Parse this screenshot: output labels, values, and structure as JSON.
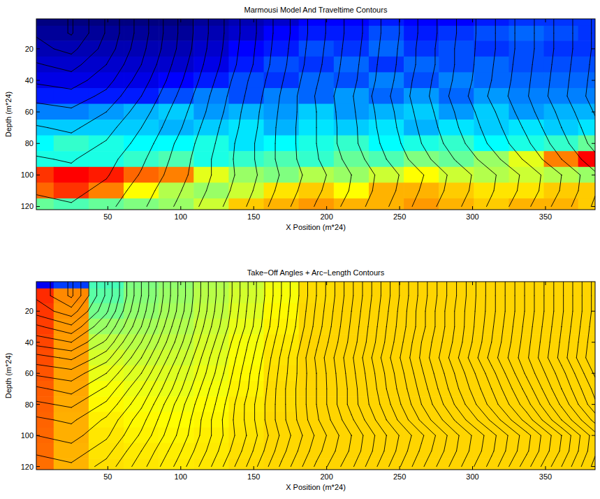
{
  "chart_data": [
    {
      "type": "heatmap",
      "title": "Marmousi Model And Traveltime Contours",
      "x_label": "X Position (m*24)",
      "y_label": "Depth (m*24)",
      "xlim": [
        1,
        384
      ],
      "ylim": [
        1,
        122
      ],
      "xticks": [
        50,
        100,
        150,
        200,
        250,
        300,
        350
      ],
      "yticks": [
        20,
        40,
        60,
        80,
        100,
        120
      ],
      "x": [
        1,
        25,
        49,
        73,
        97,
        121,
        145,
        169,
        193,
        217,
        241,
        265,
        289,
        313,
        337,
        361,
        384
      ],
      "y": [
        1,
        10,
        20,
        30,
        40,
        50,
        60,
        70,
        80,
        90,
        100,
        110,
        120
      ],
      "color_range": [
        1500,
        5500
      ],
      "cells": [
        [
          1500,
          1500,
          1500,
          1500,
          1500,
          1600,
          1700,
          1800,
          2000,
          2000,
          2100,
          2000,
          2000,
          2100,
          2200,
          2200,
          2200
        ],
        [
          1600,
          1600,
          1600,
          1600,
          1600,
          1700,
          1800,
          2000,
          2100,
          2100,
          2300,
          2100,
          2200,
          2300,
          2400,
          2300,
          2200
        ],
        [
          1700,
          1700,
          1700,
          1700,
          1700,
          1800,
          2000,
          2100,
          2300,
          2200,
          2400,
          2200,
          2300,
          2200,
          2300,
          2200,
          2200
        ],
        [
          1800,
          1800,
          1800,
          1800,
          1800,
          1900,
          2100,
          2300,
          2200,
          2400,
          2200,
          2400,
          2300,
          2400,
          2300,
          2300,
          2300
        ],
        [
          1900,
          1900,
          1900,
          1900,
          2000,
          2100,
          2300,
          2200,
          2400,
          2300,
          2500,
          2300,
          2500,
          2400,
          2400,
          2400,
          2400
        ],
        [
          2100,
          2100,
          2100,
          2100,
          2300,
          2500,
          2300,
          2500,
          2400,
          2600,
          2400,
          2600,
          2400,
          2600,
          2500,
          2500,
          2500
        ],
        [
          2500,
          2500,
          2600,
          2700,
          2800,
          2600,
          2700,
          2600,
          2800,
          2600,
          2700,
          2800,
          2600,
          2800,
          2600,
          2700,
          2700
        ],
        [
          2800,
          2800,
          2800,
          2800,
          2700,
          2800,
          2900,
          2700,
          2900,
          2800,
          2900,
          2700,
          2900,
          2800,
          2900,
          2800,
          2900
        ],
        [
          3000,
          3200,
          3100,
          3000,
          3000,
          3100,
          2900,
          3000,
          3100,
          3200,
          3000,
          3100,
          3200,
          3000,
          3100,
          3200,
          3400
        ],
        [
          3100,
          3100,
          3100,
          3200,
          3300,
          3100,
          3200,
          3300,
          3200,
          3400,
          3300,
          3500,
          3400,
          3600,
          3900,
          4500,
          5000
        ],
        [
          4800,
          5000,
          4900,
          4600,
          4500,
          3900,
          3600,
          3500,
          3700,
          3600,
          3800,
          4000,
          3800,
          3700,
          3800,
          3700,
          3600
        ],
        [
          4600,
          4800,
          4500,
          4000,
          3700,
          3600,
          3800,
          4100,
          4200,
          4000,
          4300,
          4300,
          4200,
          4100,
          4100,
          4200,
          4200
        ],
        [
          3400,
          3300,
          3400,
          3500,
          3600,
          3800,
          4200,
          4300,
          4400,
          4300,
          4300,
          4400,
          4300,
          4200,
          4300,
          4300,
          4200
        ]
      ],
      "contour_field": [
        [
          1.9,
          0.9,
          3.1,
          5.5,
          7.9,
          10.2,
          12.4,
          14.5,
          16.5,
          18.4,
          20.3,
          22.2,
          24.0,
          25.8,
          27.6,
          29.4,
          31.2
        ],
        [
          1.9,
          0.9,
          3.1,
          5.5,
          7.9,
          10.2,
          12.4,
          14.5,
          16.5,
          18.4,
          20.3,
          22.2,
          24.0,
          25.8,
          27.6,
          29.4,
          31.2
        ],
        [
          2.3,
          1.7,
          3.4,
          5.7,
          8.0,
          10.3,
          12.5,
          14.6,
          16.6,
          18.5,
          20.4,
          22.3,
          24.1,
          25.8,
          27.6,
          29.4,
          31.2
        ],
        [
          3.1,
          2.6,
          4.0,
          6.0,
          8.3,
          10.5,
          12.6,
          14.7,
          16.7,
          18.6,
          20.5,
          22.3,
          24.1,
          25.9,
          27.7,
          29.5,
          31.3
        ],
        [
          3.8,
          3.5,
          4.6,
          6.5,
          8.6,
          10.8,
          12.9,
          14.9,
          16.9,
          18.7,
          20.6,
          22.5,
          24.2,
          26.0,
          27.8,
          29.6,
          31.4
        ],
        [
          4.7,
          4.4,
          5.3,
          7.0,
          9.0,
          11.1,
          13.1,
          15.1,
          17.1,
          18.9,
          20.8,
          22.6,
          24.4,
          26.2,
          27.9,
          29.7,
          31.5
        ],
        [
          5.4,
          5.2,
          6.0,
          7.5,
          9.4,
          11.3,
          13.3,
          15.2,
          17.0,
          18.8,
          20.6,
          22.4,
          24.1,
          25.8,
          27.6,
          29.3,
          31.1
        ],
        [
          6.1,
          5.8,
          6.6,
          8.0,
          9.7,
          11.6,
          13.4,
          15.3,
          17.0,
          18.7,
          20.5,
          22.2,
          23.9,
          25.5,
          27.2,
          29.0,
          30.7
        ],
        [
          6.6,
          6.4,
          7.1,
          8.4,
          10.1,
          11.8,
          13.6,
          15.3,
          17.0,
          18.7,
          20.3,
          22.0,
          23.6,
          25.2,
          26.8,
          28.6,
          30.4
        ],
        [
          7.1,
          6.9,
          7.6,
          8.8,
          10.3,
          12.0,
          13.6,
          15.3,
          16.9,
          18.4,
          20.0,
          21.6,
          23.1,
          24.6,
          26.2,
          28.0,
          29.7
        ],
        [
          7.5,
          7.3,
          7.9,
          9.1,
          10.5,
          12.0,
          13.5,
          15.1,
          16.6,
          18.0,
          19.5,
          20.9,
          22.4,
          23.8,
          25.3,
          27.0,
          28.8
        ],
        [
          7.9,
          7.7,
          8.3,
          9.5,
          10.8,
          12.2,
          13.7,
          15.3,
          16.8,
          18.1,
          19.6,
          21.1,
          22.5,
          23.9,
          25.4,
          27.1,
          28.9
        ],
        [
          8.3,
          8.1,
          8.7,
          9.8,
          11.1,
          12.5,
          14.0,
          15.6,
          17.1,
          18.4,
          19.9,
          21.4,
          22.8,
          24.2,
          25.8,
          27.5,
          29.2
        ]
      ],
      "contour_levels": [
        1,
        2,
        3,
        4,
        5,
        6,
        7,
        8,
        9,
        10,
        11,
        12,
        13,
        14,
        15,
        16,
        17,
        18,
        19,
        20,
        21,
        22,
        23,
        24,
        25,
        26,
        27,
        28,
        29,
        30,
        31
      ]
    },
    {
      "type": "heatmap",
      "title": "Take−Off Angles + Arc−Length Contours",
      "x_label": "X Position (m*24)",
      "y_label": "Depth (m*24)",
      "xlim": [
        1,
        384
      ],
      "ylim": [
        1,
        122
      ],
      "xticks": [
        50,
        100,
        150,
        200,
        250,
        300,
        350
      ],
      "yticks": [
        20,
        40,
        60,
        80,
        100,
        120
      ],
      "x": [
        1,
        25,
        49,
        73,
        97,
        121,
        145,
        169,
        193,
        217,
        241,
        265,
        289,
        313,
        337,
        361,
        384
      ],
      "y": [
        1,
        10,
        20,
        30,
        40,
        50,
        60,
        70,
        80,
        90,
        100,
        110,
        120
      ],
      "color_range": [
        -90,
        180
      ],
      "cells": [
        [
          -60,
          -40,
          30,
          45,
          50,
          58,
          65,
          75,
          88,
          90,
          90,
          90,
          90,
          90,
          90,
          90,
          90
        ],
        [
          135,
          110,
          35,
          47,
          52,
          60,
          67,
          77,
          88,
          90,
          90,
          90,
          90,
          90,
          90,
          90,
          90
        ],
        [
          132,
          108,
          42,
          50,
          55,
          62,
          70,
          80,
          89,
          90,
          90,
          90,
          90,
          90,
          90,
          90,
          90
        ],
        [
          130,
          106,
          52,
          55,
          58,
          65,
          73,
          82,
          89,
          90,
          90,
          90,
          90,
          90,
          90,
          90,
          90
        ],
        [
          128,
          105,
          62,
          60,
          62,
          68,
          76,
          84,
          90,
          90,
          90,
          90,
          90,
          90,
          90,
          90,
          90
        ],
        [
          126,
          104,
          68,
          65,
          66,
          71,
          78,
          86,
          90,
          90,
          90,
          90,
          90,
          90,
          90,
          90,
          90
        ],
        [
          124,
          103,
          73,
          70,
          70,
          74,
          80,
          87,
          90,
          90,
          90,
          90,
          90,
          90,
          90,
          90,
          90
        ],
        [
          122,
          102,
          77,
          74,
          73,
          76,
          82,
          88,
          90,
          90,
          90,
          90,
          90,
          90,
          90,
          90,
          90
        ],
        [
          121,
          101,
          80,
          77,
          76,
          79,
          84,
          88,
          90,
          90,
          90,
          90,
          90,
          90,
          90,
          90,
          90
        ],
        [
          120,
          100,
          83,
          80,
          79,
          81,
          85,
          89,
          90,
          90,
          90,
          90,
          90,
          90,
          90,
          90,
          90
        ],
        [
          119,
          100,
          85,
          82,
          81,
          83,
          86,
          89,
          90,
          90,
          90,
          90,
          90,
          90,
          90,
          90,
          90
        ],
        [
          118,
          99,
          86,
          84,
          83,
          84,
          87,
          89,
          90,
          90,
          90,
          90,
          90,
          90,
          90,
          90,
          90
        ],
        [
          117,
          99,
          87,
          85,
          84,
          85,
          88,
          89,
          90,
          90,
          90,
          90,
          90,
          90,
          90,
          90,
          90
        ]
      ],
      "contour_field": [
        [
          19,
          9,
          31,
          55,
          79,
          102,
          124,
          145,
          165,
          184,
          203,
          222,
          240,
          258,
          276,
          294,
          312
        ],
        [
          19,
          9,
          31,
          55,
          79,
          102,
          124,
          145,
          165,
          184,
          203,
          222,
          240,
          258,
          276,
          294,
          312
        ],
        [
          23,
          17,
          34,
          57,
          80,
          103,
          125,
          146,
          166,
          185,
          204,
          223,
          241,
          258,
          276,
          294,
          312
        ],
        [
          31,
          26,
          40,
          60,
          83,
          105,
          126,
          147,
          167,
          186,
          205,
          223,
          241,
          259,
          277,
          295,
          313
        ],
        [
          38,
          35,
          46,
          65,
          86,
          108,
          129,
          149,
          169,
          187,
          206,
          225,
          242,
          260,
          278,
          296,
          314
        ],
        [
          47,
          44,
          53,
          70,
          90,
          111,
          131,
          151,
          171,
          189,
          208,
          226,
          244,
          262,
          279,
          297,
          315
        ],
        [
          54,
          52,
          60,
          75,
          94,
          113,
          133,
          152,
          170,
          188,
          206,
          224,
          241,
          258,
          276,
          293,
          311
        ],
        [
          61,
          58,
          66,
          80,
          97,
          116,
          134,
          153,
          170,
          187,
          205,
          222,
          239,
          255,
          272,
          290,
          307
        ],
        [
          66,
          64,
          71,
          84,
          101,
          118,
          136,
          153,
          170,
          187,
          203,
          220,
          236,
          252,
          268,
          286,
          304
        ],
        [
          71,
          69,
          76,
          88,
          103,
          120,
          136,
          153,
          169,
          184,
          200,
          216,
          231,
          246,
          262,
          280,
          297
        ],
        [
          75,
          73,
          79,
          91,
          105,
          120,
          135,
          151,
          166,
          180,
          195,
          209,
          224,
          238,
          253,
          270,
          288
        ],
        [
          79,
          77,
          83,
          95,
          108,
          122,
          137,
          153,
          168,
          181,
          196,
          211,
          225,
          239,
          254,
          271,
          289
        ],
        [
          83,
          81,
          87,
          98,
          111,
          125,
          140,
          156,
          171,
          184,
          199,
          214,
          228,
          242,
          258,
          275,
          292
        ]
      ],
      "contour_levels": [
        5,
        10,
        15,
        20,
        25,
        30,
        35,
        40,
        45,
        50,
        55,
        60,
        65,
        70,
        75,
        80,
        85,
        90,
        95,
        100,
        105,
        110,
        115,
        120,
        125,
        130,
        135,
        140,
        145,
        150,
        155,
        160,
        165,
        170,
        175,
        180,
        185,
        190,
        195,
        200,
        205,
        210,
        215,
        220,
        225,
        230,
        235,
        240,
        245,
        250,
        255,
        260,
        265,
        270,
        275,
        280,
        285,
        290,
        295,
        300,
        305,
        310
      ]
    }
  ]
}
